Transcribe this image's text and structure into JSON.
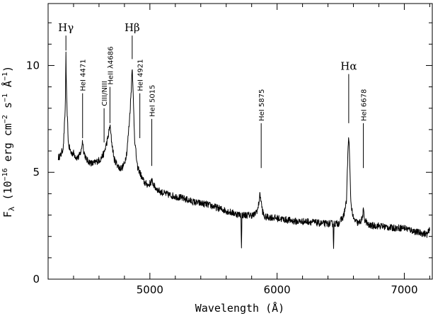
{
  "chart_data": {
    "type": "line",
    "title": "",
    "xlabel": "Wavelength (Å)",
    "ylabel_parts": {
      "symbol": "F",
      "subscript": "λ",
      "text1": " (10",
      "exp1": "−16",
      "text2": " erg cm",
      "exp2": "−2",
      "text3": " s",
      "exp3": "−1",
      "text4": " Å",
      "exp4": "−1",
      "text5": ")"
    },
    "xlim": [
      4200,
      7220
    ],
    "ylim": [
      0,
      12.9
    ],
    "xticks": [
      5000,
      6000,
      7000
    ],
    "xtick_labels": [
      "5000",
      "6000",
      "7000"
    ],
    "yticks": [
      0,
      5,
      10
    ],
    "ytick_labels": [
      "0",
      "5",
      "10"
    ],
    "grid": false,
    "legend": "none",
    "series": [
      {
        "x": [
          4280,
          4300,
          4320,
          4335,
          4340,
          4345,
          4360,
          4380,
          4400,
          4420,
          4440,
          4460,
          4471,
          4480,
          4500,
          4520,
          4550,
          4580,
          4610,
          4640,
          4670,
          4686,
          4700,
          4720,
          4740,
          4760,
          4780,
          4800,
          4820,
          4840,
          4855,
          4861,
          4867,
          4880,
          4900,
          4921,
          4940,
          4960,
          4990,
          5015,
          5040,
          5080,
          5120,
          5180,
          5250,
          5350,
          5450,
          5550,
          5650,
          5716,
          5720,
          5724,
          5760,
          5820,
          5850,
          5866,
          5875,
          5885,
          5900,
          5950,
          6050,
          6150,
          6250,
          6350,
          6440,
          6444,
          6448,
          6480,
          6520,
          6545,
          6556,
          6563,
          6570,
          6580,
          6600,
          6640,
          6668,
          6678,
          6688,
          6720,
          6800,
          6900,
          7000,
          7100,
          7180,
          7200
        ],
        "values": [
          5.7,
          5.8,
          6.2,
          8.0,
          10.5,
          8.5,
          6.3,
          5.9,
          5.9,
          5.7,
          5.7,
          6.0,
          6.5,
          6.0,
          5.6,
          5.5,
          5.4,
          5.5,
          5.6,
          5.9,
          6.6,
          7.2,
          6.4,
          5.6,
          5.4,
          5.2,
          5.2,
          5.4,
          6.0,
          7.5,
          9.0,
          10.1,
          8.9,
          6.6,
          5.3,
          5.0,
          4.7,
          4.5,
          4.4,
          4.6,
          4.3,
          4.1,
          4.0,
          3.9,
          3.8,
          3.6,
          3.5,
          3.3,
          3.1,
          3.0,
          1.4,
          3.0,
          3.0,
          3.0,
          3.3,
          4.0,
          3.6,
          3.2,
          2.9,
          2.9,
          2.8,
          2.7,
          2.7,
          2.6,
          2.6,
          1.4,
          2.6,
          2.6,
          2.9,
          3.6,
          5.8,
          6.8,
          5.6,
          3.6,
          2.8,
          2.6,
          2.8,
          3.2,
          2.8,
          2.5,
          2.5,
          2.4,
          2.4,
          2.2,
          2.1,
          2.3
        ]
      }
    ],
    "line_markers": [
      {
        "label": "Hγ",
        "big": true,
        "wavelength": 4340,
        "line_y": [
          10.7,
          11.4
        ]
      },
      {
        "label": "HeI 4471",
        "big": false,
        "wavelength": 4471,
        "line_y": [
          6.6,
          8.7
        ]
      },
      {
        "label": "CIII/NIII",
        "big": false,
        "wavelength": 4640,
        "line_y": [
          6.4,
          8.0
        ]
      },
      {
        "label": "HeII λ4686",
        "big": false,
        "wavelength": 4686,
        "line_y": [
          7.3,
          9.0
        ]
      },
      {
        "label": "Hβ",
        "big": true,
        "wavelength": 4861,
        "line_y": [
          10.3,
          11.4
        ]
      },
      {
        "label": "HeI 4921",
        "big": false,
        "wavelength": 4921,
        "line_y": [
          6.6,
          8.7
        ]
      },
      {
        "label": "HeI 5015",
        "big": false,
        "wavelength": 5015,
        "line_y": [
          5.3,
          7.5
        ]
      },
      {
        "label": "HeI 5875",
        "big": false,
        "wavelength": 5875,
        "line_y": [
          5.2,
          7.3
        ]
      },
      {
        "label": "Hα",
        "big": true,
        "wavelength": 6563,
        "line_y": [
          7.3,
          9.6
        ]
      },
      {
        "label": "HeI 6678",
        "big": false,
        "wavelength": 6678,
        "line_y": [
          5.2,
          7.3
        ]
      }
    ]
  }
}
